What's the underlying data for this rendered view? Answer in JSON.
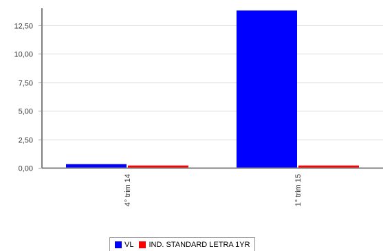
{
  "chart_data": {
    "type": "bar",
    "categories": [
      "4° trim  14",
      "1° trim  15"
    ],
    "series": [
      {
        "name": "VL",
        "color": "#0000ff",
        "values": [
          0.32,
          13.8
        ]
      },
      {
        "name": "IND. STANDARD LETRA 1YR",
        "color": "#ff0000",
        "values": [
          0.2,
          0.2
        ]
      }
    ],
    "y_ticks": [
      "0,00",
      "2,50",
      "5,00",
      "7,50",
      "10,00",
      "12,50"
    ],
    "y_tick_values": [
      0,
      2.5,
      5,
      7.5,
      10,
      12.5
    ],
    "ylim": [
      0,
      14
    ],
    "grid": true,
    "legend_position": "bottom"
  }
}
